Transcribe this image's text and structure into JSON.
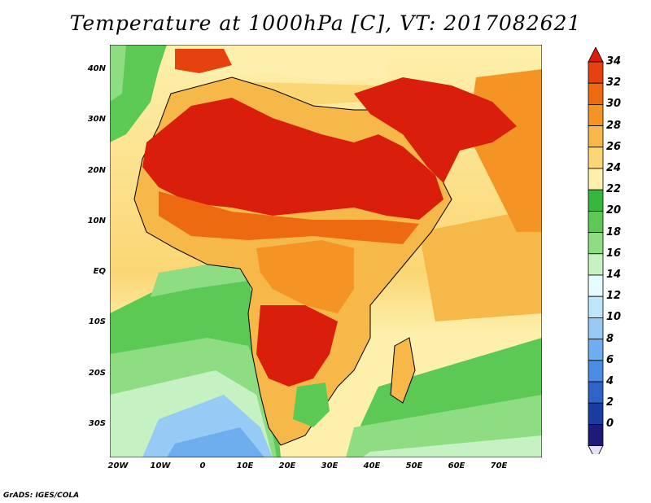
{
  "title": "Temperature at 1000hPa [C], VT: 2017082621",
  "credit": "GrADS: IGES/COLA",
  "lat_labels": [
    "40N",
    "30N",
    "20N",
    "10N",
    "EQ",
    "10S",
    "20S",
    "30S"
  ],
  "lon_labels": [
    "20W",
    "10W",
    "0",
    "10E",
    "20E",
    "30E",
    "40E",
    "50E",
    "60E",
    "70E"
  ],
  "colorbar": {
    "labels": [
      "34",
      "32",
      "30",
      "28",
      "26",
      "24",
      "22",
      "20",
      "18",
      "16",
      "14",
      "12",
      "10",
      "8",
      "6",
      "4",
      "2",
      "0"
    ],
    "colors": [
      "#d91f0c",
      "#e6420f",
      "#ee6a10",
      "#f39424",
      "#f7b84a",
      "#fbd674",
      "#fdf0ac",
      "#35b63e",
      "#5cc955",
      "#8edd83",
      "#c6f2c3",
      "#e6fbff",
      "#bfe5fb",
      "#97cbf5",
      "#6eaeef",
      "#4a8ce4",
      "#2f63c7",
      "#1a3ca0",
      "#1e1a7a",
      "#e8e0ff"
    ]
  }
}
